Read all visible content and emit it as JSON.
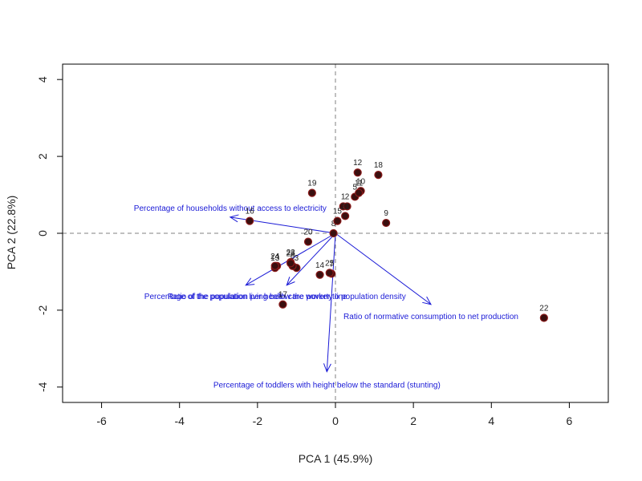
{
  "colors": {
    "arrow": "#1a1ad6",
    "point_fill": "#3a0f0f",
    "point_stroke": "#8b1a1a",
    "refline": "#808080",
    "frame": "#000000"
  },
  "chart_data": {
    "type": "scatter",
    "title": "",
    "xlabel": "PCA 1 (45.9%)",
    "ylabel": "PCA 2 (22.8%)",
    "xlim": [
      -7,
      7
    ],
    "ylim": [
      -4.4,
      4.4
    ],
    "xticks": [
      -6,
      -4,
      -2,
      0,
      2,
      4,
      6
    ],
    "yticks": [
      -4,
      -2,
      0,
      2,
      4
    ],
    "xtick_labels": [
      "-6",
      "-4",
      "-2",
      "0",
      "2",
      "4",
      "6"
    ],
    "ytick_labels": [
      "-4",
      "-2",
      "0",
      "2",
      "4"
    ],
    "reference_lines": {
      "x": 0,
      "y": 0,
      "style": "dashed"
    },
    "grid": false,
    "points": [
      {
        "label": "1",
        "x": 0.2,
        "y": 0.7
      },
      {
        "label": "2",
        "x": 0.3,
        "y": 0.7
      },
      {
        "label": "3",
        "x": -1.0,
        "y": -0.9
      },
      {
        "label": "4",
        "x": -1.5,
        "y": -0.85
      },
      {
        "label": "5",
        "x": 0.5,
        "y": 0.95
      },
      {
        "label": "6",
        "x": -1.1,
        "y": -0.85
      },
      {
        "label": "7",
        "x": -0.1,
        "y": -1.05
      },
      {
        "label": "8",
        "x": -0.05,
        "y": 0.0
      },
      {
        "label": "9",
        "x": 1.3,
        "y": 0.27
      },
      {
        "label": "10",
        "x": 0.65,
        "y": 1.1
      },
      {
        "label": "11",
        "x": 0.6,
        "y": 1.05
      },
      {
        "label": "12",
        "x": 0.57,
        "y": 1.58
      },
      {
        "label": "13",
        "x": -1.55,
        "y": -0.9
      },
      {
        "label": "14",
        "x": -0.4,
        "y": -1.08
      },
      {
        "label": "15",
        "x": 0.05,
        "y": 0.32
      },
      {
        "label": "16",
        "x": -2.2,
        "y": 0.32
      },
      {
        "label": "17",
        "x": -1.35,
        "y": -1.85
      },
      {
        "label": "18",
        "x": 1.1,
        "y": 1.52
      },
      {
        "label": "19",
        "x": -0.6,
        "y": 1.05
      },
      {
        "label": "20",
        "x": -0.7,
        "y": -0.22
      },
      {
        "label": "21",
        "x": 0.25,
        "y": 0.45
      },
      {
        "label": "22",
        "x": 5.35,
        "y": -2.2
      },
      {
        "label": "23",
        "x": -1.15,
        "y": -0.75
      },
      {
        "label": "24",
        "x": -1.55,
        "y": -0.85
      },
      {
        "label": "25",
        "x": -0.15,
        "y": -1.03
      },
      {
        "label": "26",
        "x": -1.15,
        "y": -0.78
      }
    ],
    "loadings": [
      {
        "label": "Percentage of households without access to electricity",
        "x": -2.7,
        "y": 0.42,
        "label_x": -2.7,
        "label_y": 0.67
      },
      {
        "label": "Percentage of the population living below the poverty line",
        "x": -2.3,
        "y": -1.35,
        "label_x": -2.3,
        "label_y": -1.63
      },
      {
        "label": "Ratio of the population per health care worker to population density",
        "x": -1.25,
        "y": -1.35,
        "label_x": -1.25,
        "label_y": -1.63
      },
      {
        "label": "Ratio of normative consumption to net production",
        "x": 2.45,
        "y": -1.85,
        "label_x": 2.45,
        "label_y": -2.15
      },
      {
        "label": "Percentage of toddlers with height below the standard (stunting)",
        "x": -0.22,
        "y": -3.6,
        "label_x": -0.22,
        "label_y": -3.93
      }
    ]
  }
}
